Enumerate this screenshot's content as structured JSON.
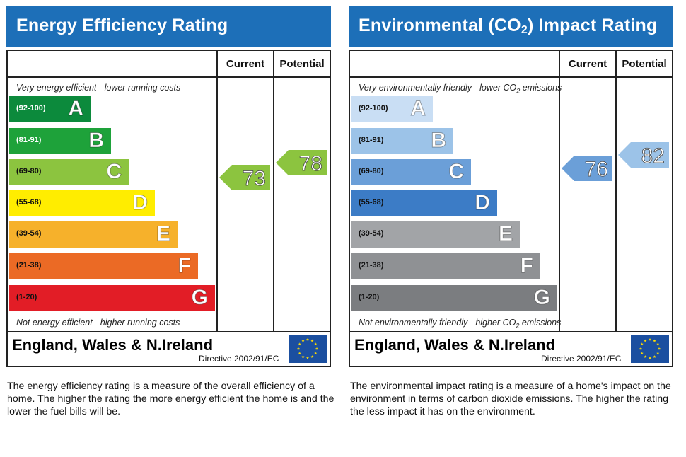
{
  "chart_data": [
    {
      "type": "table",
      "title": "Energy Efficiency Rating",
      "columns": [
        "Current",
        "Potential"
      ],
      "top_note": "Very energy efficient - lower running costs",
      "bottom_note": "Not energy efficient - higher running costs",
      "bands": [
        {
          "range": "(92-100)",
          "letter": "A",
          "color": "#0c8a3c"
        },
        {
          "range": "(81-91)",
          "letter": "B",
          "color": "#1ea23a"
        },
        {
          "range": "(69-80)",
          "letter": "C",
          "color": "#8cc43f"
        },
        {
          "range": "(55-68)",
          "letter": "D",
          "color": "#ffed00"
        },
        {
          "range": "(39-54)",
          "letter": "E",
          "color": "#f6b12b"
        },
        {
          "range": "(21-38)",
          "letter": "F",
          "color": "#eb6a25"
        },
        {
          "range": "(1-20)",
          "letter": "G",
          "color": "#e21d26"
        }
      ],
      "current": {
        "value": 73,
        "band": "C",
        "color": "#8cc43f"
      },
      "potential": {
        "value": 78,
        "band": "C",
        "color": "#8cc43f"
      },
      "footer_title": "England, Wales & N.Ireland",
      "directive": "Directive 2002/91/EC",
      "description": "The energy efficiency rating is a measure of the overall efficiency of a home. The higher the rating the more energy efficient the home is and the lower the fuel bills will be."
    },
    {
      "type": "table",
      "title": "Environmental (CO2) Impact Rating",
      "columns": [
        "Current",
        "Potential"
      ],
      "top_note": "Very environmentally friendly - lower CO2 emissions",
      "bottom_note": "Not environmentally friendly - higher CO2 emissions",
      "bands": [
        {
          "range": "(92-100)",
          "letter": "A",
          "color": "#c9def4"
        },
        {
          "range": "(81-91)",
          "letter": "B",
          "color": "#9cc3e8"
        },
        {
          "range": "(69-80)",
          "letter": "C",
          "color": "#6b9fd8"
        },
        {
          "range": "(55-68)",
          "letter": "D",
          "color": "#3c7cc6"
        },
        {
          "range": "(39-54)",
          "letter": "E",
          "color": "#a2a4a7"
        },
        {
          "range": "(21-38)",
          "letter": "F",
          "color": "#8f9194"
        },
        {
          "range": "(1-20)",
          "letter": "G",
          "color": "#7b7d80"
        }
      ],
      "current": {
        "value": 76,
        "band": "C",
        "color": "#6b9fd8"
      },
      "potential": {
        "value": 82,
        "band": "B",
        "color": "#9cc3e8"
      },
      "footer_title": "England, Wales & N.Ireland",
      "directive": "Directive 2002/91/EC",
      "description": "The environmental impact rating is a measure of a home's impact on the environment in terms of carbon dioxide emissions. The higher the rating the less impact it has on the environment."
    }
  ]
}
